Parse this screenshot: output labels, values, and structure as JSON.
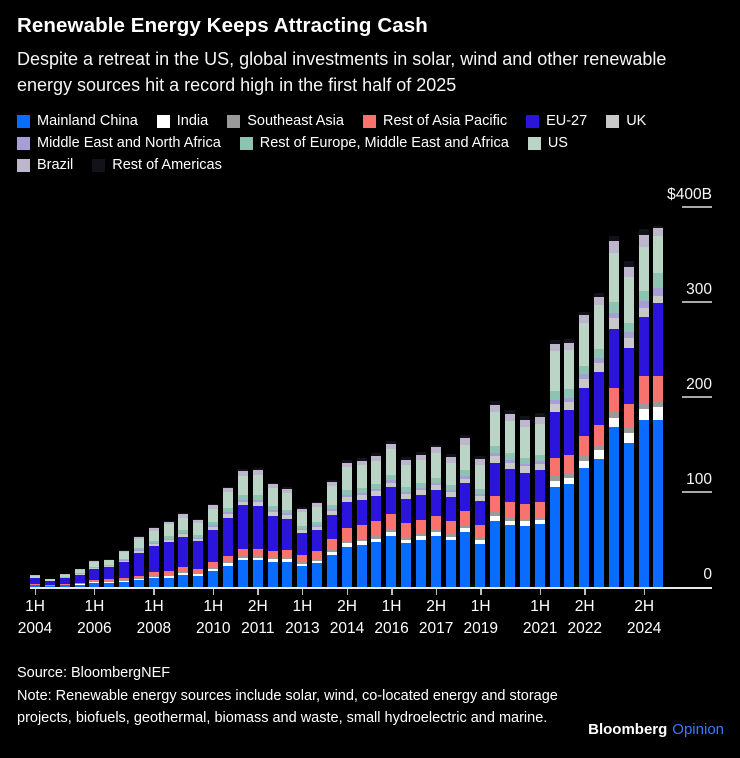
{
  "header": {
    "title": "Renewable Energy Keeps Attracting Cash",
    "subtitle": "Despite a retreat in the US, global investments in solar, wind and other renewable energy sources hit a record high in the first half of 2025"
  },
  "footer": {
    "source": "Source: BloombergNEF",
    "note": "Note: Renewable energy sources include solar, wind, co-located energy and storage projects, biofuels, geothermal, biomass and waste, small hydroelectric and marine.",
    "brand_bloomberg": "Bloomberg",
    "brand_opinion": "Opinion",
    "brand_opinion_color": "#3a7bf4"
  },
  "chart_data": {
    "type": "bar",
    "stacked": true,
    "unit": "billion USD",
    "title": "Renewable Energy Keeps Attracting Cash",
    "xlabel": "",
    "ylabel": "Investment ($B)",
    "ylim": [
      0,
      400
    ],
    "grid": "right-side tick dashes only",
    "legend_position": "top",
    "y_ticks": [
      {
        "value": 400,
        "label": "$400B"
      },
      {
        "value": 300,
        "label": "300"
      },
      {
        "value": 200,
        "label": "200"
      },
      {
        "value": 100,
        "label": "100"
      },
      {
        "value": 0,
        "label": "0"
      }
    ],
    "x_ticks": [
      {
        "bar": 0,
        "line1": "1H",
        "line2": "2004"
      },
      {
        "bar": 4,
        "line1": "1H",
        "line2": "2006"
      },
      {
        "bar": 8,
        "line1": "1H",
        "line2": "2008"
      },
      {
        "bar": 12,
        "line1": "1H",
        "line2": "2010"
      },
      {
        "bar": 15,
        "line1": "2H",
        "line2": "2011"
      },
      {
        "bar": 18,
        "line1": "1H",
        "line2": "2013"
      },
      {
        "bar": 21,
        "line1": "2H",
        "line2": "2014"
      },
      {
        "bar": 24,
        "line1": "1H",
        "line2": "2016"
      },
      {
        "bar": 27,
        "line1": "2H",
        "line2": "2017"
      },
      {
        "bar": 30,
        "line1": "1H",
        "line2": "2019"
      },
      {
        "bar": 34,
        "line1": "1H",
        "line2": "2021"
      },
      {
        "bar": 37,
        "line1": "2H",
        "line2": "2022"
      },
      {
        "bar": 41,
        "line1": "2H",
        "line2": "2024"
      }
    ],
    "categories": [
      "1H 2004",
      "2H 2004",
      "1H 2005",
      "2H 2005",
      "1H 2006",
      "2H 2006",
      "1H 2007",
      "2H 2007",
      "1H 2008",
      "2H 2008",
      "1H 2009",
      "2H 2009",
      "1H 2010",
      "2H 2010",
      "1H 2011",
      "2H 2011",
      "1H 2012",
      "2H 2012",
      "1H 2013",
      "2H 2013",
      "1H 2014",
      "2H 2014",
      "1H 2015",
      "2H 2015",
      "1H 2016",
      "2H 2016",
      "1H 2017",
      "2H 2017",
      "1H 2018",
      "2H 2018",
      "1H 2019",
      "2H 2019",
      "1H 2020",
      "2H 2020",
      "1H 2021",
      "2H 2021",
      "1H 2022",
      "2H 2022",
      "1H 2023",
      "2H 2023",
      "1H 2024",
      "2H 2024",
      "1H 2025"
    ],
    "series": [
      {
        "name": "Mainland China",
        "color": "#0a6cff",
        "legend_row": 1,
        "values": [
          2,
          1,
          2,
          2,
          4,
          4,
          5,
          7,
          9,
          10,
          13,
          12,
          17,
          22,
          28,
          28,
          26,
          26,
          22,
          25,
          34,
          42,
          44,
          47,
          54,
          46,
          50,
          54,
          49,
          58,
          45,
          70,
          65,
          64,
          66,
          105,
          108,
          125,
          135,
          168,
          152,
          176,
          176
        ]
      },
      {
        "name": "India",
        "color": "#ffffff",
        "legend_row": 1,
        "values": [
          0,
          0,
          0,
          1,
          1,
          1,
          1,
          1,
          2,
          2,
          2,
          2,
          2,
          3,
          3,
          3,
          3,
          3,
          2,
          2,
          3,
          4,
          4,
          4,
          4,
          4,
          4,
          4,
          4,
          4,
          4,
          5,
          5,
          5,
          5,
          7,
          7,
          8,
          9,
          10,
          10,
          11,
          14
        ]
      },
      {
        "name": "Southeast Asia",
        "color": "#9a9a9a",
        "legend_row": 1,
        "values": [
          0,
          0,
          0,
          0,
          0,
          1,
          1,
          1,
          1,
          1,
          2,
          1,
          2,
          2,
          2,
          2,
          2,
          2,
          2,
          2,
          2,
          2,
          3,
          3,
          3,
          3,
          3,
          3,
          3,
          3,
          3,
          4,
          4,
          3,
          3,
          5,
          5,
          5,
          5,
          6,
          6,
          7,
          5
        ]
      },
      {
        "name": "Rest of Asia Pacific",
        "color": "#f8736d",
        "legend_row": 1,
        "values": [
          1,
          1,
          1,
          1,
          2,
          2,
          2,
          3,
          4,
          4,
          4,
          4,
          5,
          6,
          7,
          7,
          7,
          8,
          8,
          9,
          12,
          14,
          14,
          15,
          16,
          14,
          14,
          14,
          13,
          15,
          13,
          17,
          16,
          15,
          15,
          19,
          19,
          21,
          22,
          26,
          25,
          28,
          27
        ]
      },
      {
        "name": "EU-27",
        "color": "#2b14dc",
        "legend_row": 1,
        "values": [
          6,
          4,
          6,
          9,
          12,
          13,
          17,
          24,
          27,
          30,
          32,
          29,
          34,
          40,
          46,
          45,
          37,
          33,
          23,
          22,
          25,
          28,
          27,
          27,
          28,
          26,
          26,
          27,
          26,
          29,
          26,
          35,
          34,
          33,
          34,
          48,
          47,
          51,
          55,
          62,
          59,
          62,
          77
        ]
      },
      {
        "name": "UK",
        "color": "#c8c8c8",
        "legend_row": 1,
        "values": [
          0,
          0,
          1,
          1,
          1,
          1,
          1,
          2,
          2,
          3,
          3,
          3,
          3,
          4,
          4,
          5,
          4,
          4,
          3,
          3,
          4,
          5,
          5,
          5,
          5,
          5,
          5,
          5,
          5,
          5,
          5,
          7,
          7,
          7,
          7,
          9,
          9,
          9,
          10,
          11,
          10,
          10,
          7
        ]
      },
      {
        "name": "Middle East and North Africa",
        "color": "#a79fd4",
        "legend_row": 2,
        "values": [
          0,
          0,
          0,
          0,
          0,
          0,
          1,
          1,
          1,
          1,
          1,
          1,
          2,
          2,
          2,
          2,
          2,
          2,
          1,
          2,
          2,
          2,
          2,
          2,
          3,
          2,
          2,
          3,
          2,
          3,
          2,
          3,
          3,
          3,
          3,
          4,
          4,
          5,
          5,
          6,
          6,
          7,
          9
        ]
      },
      {
        "name": "Rest of Europe, Middle East and Africa",
        "color": "#8cc3b3",
        "legend_row": 2,
        "values": [
          1,
          0,
          1,
          1,
          1,
          1,
          2,
          2,
          2,
          3,
          3,
          3,
          3,
          4,
          5,
          5,
          4,
          3,
          3,
          3,
          4,
          5,
          5,
          5,
          5,
          5,
          5,
          5,
          5,
          6,
          5,
          7,
          7,
          6,
          6,
          9,
          9,
          9,
          10,
          11,
          10,
          11,
          16
        ]
      },
      {
        "name": "US",
        "color": "#bad4c6",
        "legend_row": 2,
        "values": [
          2,
          2,
          2,
          3,
          5,
          5,
          7,
          10,
          11,
          12,
          13,
          12,
          14,
          17,
          20,
          21,
          19,
          18,
          15,
          16,
          20,
          24,
          24,
          25,
          27,
          24,
          25,
          26,
          24,
          27,
          26,
          36,
          34,
          33,
          33,
          42,
          42,
          45,
          46,
          52,
          48,
          46,
          39
        ]
      },
      {
        "name": "Brazil",
        "color": "#bdb6cc",
        "legend_row": 3,
        "values": [
          1,
          1,
          1,
          1,
          1,
          1,
          1,
          2,
          3,
          3,
          4,
          4,
          4,
          4,
          5,
          5,
          4,
          4,
          3,
          4,
          5,
          5,
          5,
          5,
          6,
          5,
          5,
          6,
          6,
          7,
          6,
          8,
          7,
          7,
          7,
          8,
          7,
          8,
          8,
          12,
          11,
          13,
          8
        ]
      },
      {
        "name": "Rest of Americas",
        "color": "#12121a",
        "legend_row": 3,
        "values": [
          0,
          0,
          0,
          0,
          1,
          1,
          1,
          1,
          1,
          1,
          1,
          1,
          1,
          1,
          2,
          2,
          2,
          2,
          2,
          2,
          2,
          3,
          3,
          3,
          3,
          3,
          3,
          3,
          3,
          3,
          3,
          4,
          4,
          4,
          4,
          4,
          4,
          4,
          4,
          6,
          6,
          6,
          2
        ]
      }
    ]
  }
}
